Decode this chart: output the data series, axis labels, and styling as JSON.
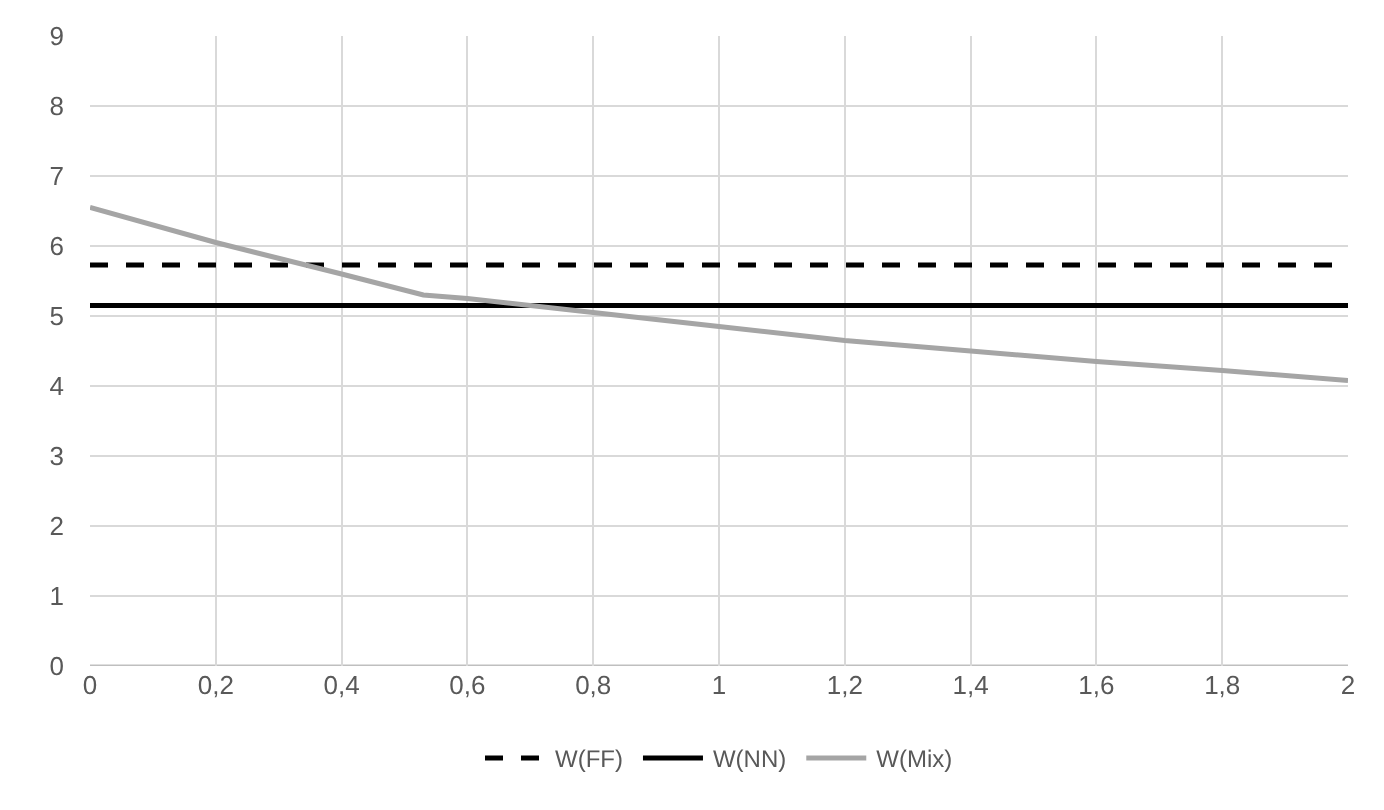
{
  "chart_data": {
    "type": "line",
    "xlim": [
      0,
      2
    ],
    "xticks": [
      0,
      {
        "value": 0.2,
        "label": "0,2"
      },
      {
        "value": 0.4,
        "label": "0,4"
      },
      {
        "value": 0.6,
        "label": "0,6"
      },
      {
        "value": 0.8,
        "label": "0,8"
      },
      1,
      {
        "value": 1.2,
        "label": "1,2"
      },
      {
        "value": 1.4,
        "label": "1,4"
      },
      {
        "value": 1.6,
        "label": "1,6"
      },
      {
        "value": 1.8,
        "label": "1,8"
      },
      2
    ],
    "ylim": [
      0,
      9
    ],
    "yticks": [
      0,
      1,
      2,
      3,
      4,
      5,
      6,
      7,
      8,
      9
    ],
    "grid": true,
    "legend": "bottom",
    "marker": "none",
    "series": [
      {
        "name": "W(FF)",
        "color": "#000000",
        "line_style": "dashed",
        "x": [
          0,
          2
        ],
        "values": [
          5.73,
          5.73
        ]
      },
      {
        "name": "W(NN)",
        "color": "#000000",
        "line_style": "solid",
        "x": [
          0,
          2
        ],
        "values": [
          5.15,
          5.15
        ]
      },
      {
        "name": "W(Mix)",
        "color": "#a5a5a5",
        "line_style": "solid",
        "x": [
          0,
          0.2,
          0.4,
          0.53,
          0.6,
          0.8,
          1,
          1.2,
          1.4,
          1.6,
          1.8,
          2
        ],
        "values": [
          6.55,
          6.05,
          5.6,
          5.3,
          5.25,
          5.05,
          4.85,
          4.65,
          4.5,
          4.35,
          4.22,
          4.08
        ]
      }
    ]
  }
}
